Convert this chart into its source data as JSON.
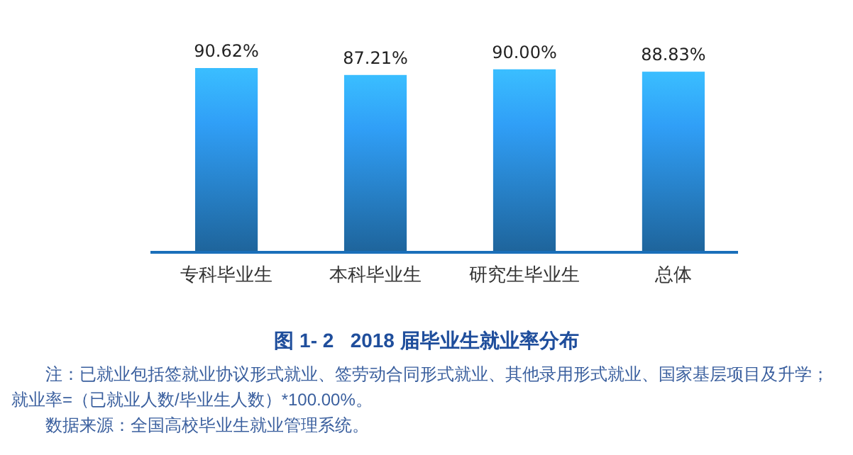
{
  "chart_data": {
    "type": "bar",
    "title": "图 1- 2   2018 届毕业生就业率分布",
    "categories": [
      "专科毕业生",
      "本科毕业生",
      "研究生毕业生",
      "总体"
    ],
    "values": [
      90.62,
      87.21,
      90.0,
      88.83
    ],
    "value_labels": [
      "90.62%",
      "87.21%",
      "90.00%",
      "88.83%"
    ],
    "color": "#2a8ad6",
    "annotations": [
      "注：已就业包括签就业协议形式就业、签劳动合同形式就业、其他录用形式就业、国家基层项目及升学；就业率=（已就业人数/毕业生人数）*100.00%。",
      "数据来源：全国高校毕业生就业管理系统。"
    ]
  }
}
